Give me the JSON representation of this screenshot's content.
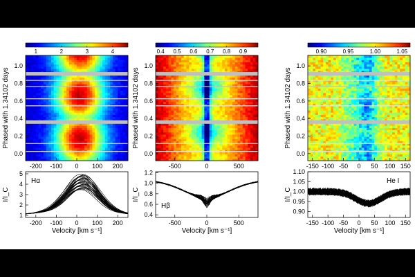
{
  "chart_data": [
    {
      "type": "heatmap",
      "id": "ha",
      "line_label": "Hα",
      "colorbar_ticks": [
        "1",
        "2",
        "3",
        "4"
      ],
      "colorbar_range": [
        0.6,
        4.6
      ],
      "x_ticks": [
        "-200",
        "-100",
        "0",
        "100",
        "200"
      ],
      "xlim": [
        -250,
        250
      ],
      "ylabel": "Phased with 1.34102 days",
      "y_ticks": [
        "0.0",
        "0.2",
        "0.4",
        "0.6",
        "0.8",
        "1.0"
      ],
      "ylim": [
        -0.08,
        1.12
      ],
      "gaps": [
        [
          0.34,
          0.38
        ],
        [
          0.89,
          0.93
        ],
        [
          0.76,
          0.77
        ]
      ],
      "profile": {
        "xlabel": "Velocity [km s⁻¹]",
        "ylabel": "I/I_C",
        "y_ticks": [
          "1",
          "2",
          "3",
          "4",
          "5"
        ],
        "ylim": [
          0.8,
          5.2
        ],
        "x_ticks": [
          "-200",
          "-100",
          "0",
          "100",
          "200"
        ],
        "xlim": [
          -250,
          250
        ],
        "peak_min": 3.0,
        "peak_max": 4.5,
        "center": 20,
        "width": 70,
        "wing": 1.2
      }
    },
    {
      "type": "heatmap",
      "id": "hb",
      "line_label": "Hβ",
      "colorbar_ticks": [
        "0.4",
        "0.5",
        "0.6",
        "0.7",
        "0.8",
        "0.9"
      ],
      "colorbar_range": [
        0.37,
        0.99
      ],
      "x_ticks": [
        "-500",
        "0",
        "500"
      ],
      "xlim": [
        -800,
        800
      ],
      "ylabel": "Phased with 1.34102 days",
      "y_ticks": [
        "0.0",
        "0.2",
        "0.4",
        "0.6",
        "0.8",
        "1.0"
      ],
      "ylim": [
        -0.08,
        1.12
      ],
      "gaps": [
        [
          0.34,
          0.38
        ],
        [
          0.89,
          0.93
        ],
        [
          0.76,
          0.77
        ]
      ],
      "profile": {
        "xlabel": "Velocity [km s⁻¹]",
        "ylabel": "I/I_C",
        "y_ticks": [
          "0.4",
          "0.6",
          "0.8",
          "1.0",
          "1.2"
        ],
        "ylim": [
          0.35,
          1.22
        ],
        "x_ticks": [
          "-500",
          "0",
          "500"
        ],
        "xlim": [
          -800,
          800
        ],
        "depth": 0.28,
        "width": 350,
        "core": 0.2
      }
    },
    {
      "type": "heatmap",
      "id": "he",
      "line_label": "He I",
      "colorbar_ticks": [
        "0.90",
        "0.95",
        "1.00",
        "1.05"
      ],
      "colorbar_range": [
        0.875,
        1.065
      ],
      "x_ticks": [
        "-150",
        "-100",
        "-50",
        "0",
        "50",
        "100",
        "150"
      ],
      "xlim": [
        -165,
        165
      ],
      "ylabel": "Phased with 1.34102 days",
      "y_ticks": [
        "0.0",
        "0.2",
        "0.4",
        "0.6",
        "0.8",
        "1.0"
      ],
      "ylim": [
        -0.08,
        1.12
      ],
      "gaps": [
        [
          0.34,
          0.38
        ],
        [
          0.89,
          0.93
        ],
        [
          0.76,
          0.77
        ]
      ],
      "profile": {
        "xlabel": "Velocity [km s⁻¹]",
        "ylabel": "I/I_C",
        "y_ticks": [
          "0.90",
          "0.95",
          "1.00",
          "1.05",
          "1.10"
        ],
        "ylim": [
          0.87,
          1.1
        ],
        "x_ticks": [
          "-150",
          "-100",
          "-50",
          "0",
          "50",
          "100",
          "150"
        ],
        "xlim": [
          -165,
          165
        ],
        "depth": 0.06,
        "center": 30,
        "width": 40,
        "noise": 0.018
      }
    }
  ]
}
